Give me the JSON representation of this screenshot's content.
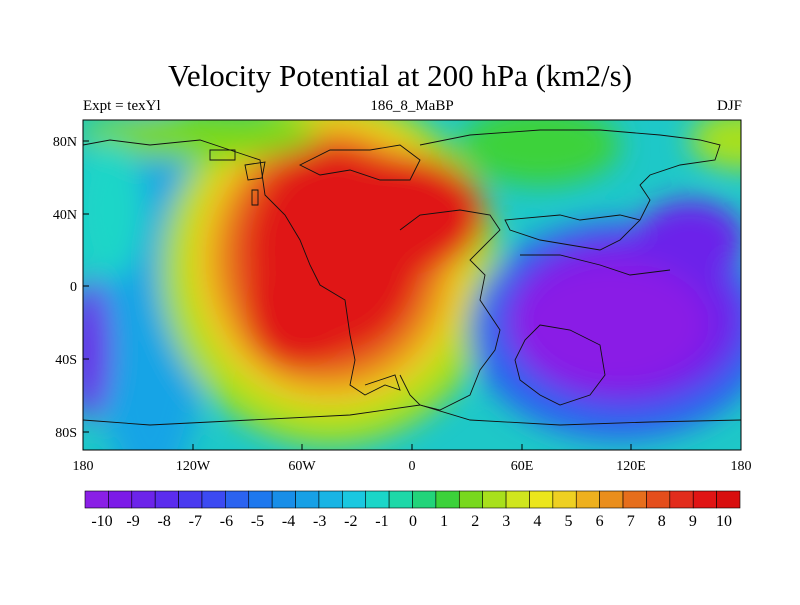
{
  "title": "Velocity Potential at 200 hPa (km2/s)",
  "subtitle_left": "Expt = texYl",
  "subtitle_center": "186_8_MaBP",
  "subtitle_right": "DJF",
  "lat_labels": [
    "80N",
    "40N",
    "0",
    "40S",
    "80S"
  ],
  "lon_labels": [
    "180",
    "120W",
    "60W",
    "0",
    "60E",
    "120E",
    "180"
  ],
  "colorbar_labels": [
    "-10",
    "-9",
    "-8",
    "-7",
    "-6",
    "-5",
    "-4",
    "-3",
    "-2",
    "-1",
    "0",
    "1",
    "2",
    "3",
    "4",
    "5",
    "6",
    "7",
    "8",
    "9",
    "10"
  ],
  "colorbar_colors": [
    "#8a1fe6",
    "#7c1be8",
    "#6c24ea",
    "#5b2cee",
    "#4a3af0",
    "#3c4af2",
    "#2b63f0",
    "#1e78ee",
    "#188ee8",
    "#17a0e6",
    "#18b4e4",
    "#1ac8e0",
    "#1bd6c8",
    "#1ed8a8",
    "#22d47a",
    "#3cd23a",
    "#78d81e",
    "#a8e01c",
    "#d0e61e",
    "#ece61c",
    "#eed022",
    "#eeb01e",
    "#ea8e1c",
    "#e66e1c",
    "#e44e1c",
    "#e22c1c",
    "#e01414",
    "#d80e0e"
  ],
  "map_data": {
    "variable": "Velocity Potential",
    "level": "200 hPa",
    "units": "km2/s",
    "season": "DJF",
    "contour_min": -10,
    "contour_max": 10,
    "extrema": [
      {
        "sign": "max",
        "lon": -45,
        "lat": 20,
        "value": 10
      },
      {
        "sign": "min",
        "lon": 120,
        "lat": -20,
        "value": -10
      }
    ]
  }
}
